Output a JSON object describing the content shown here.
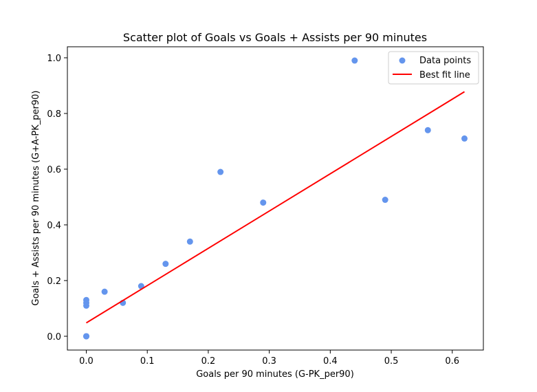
{
  "chart_data": {
    "type": "scatter",
    "title": "Scatter plot of Goals vs Goals + Assists per 90 minutes",
    "xlabel": "Goals per 90 minutes (G-PK_per90)",
    "ylabel": "Goals + Assists per 90 minutes (G+A-PK_per90)",
    "xlim": [
      -0.031,
      0.651
    ],
    "ylim": [
      -0.0495,
      1.0395
    ],
    "xticks": [
      0.0,
      0.1,
      0.2,
      0.3,
      0.4,
      0.5,
      0.6
    ],
    "xtick_labels": [
      "0.0",
      "0.1",
      "0.2",
      "0.3",
      "0.4",
      "0.5",
      "0.6"
    ],
    "yticks": [
      0.0,
      0.2,
      0.4,
      0.6,
      0.8,
      1.0
    ],
    "ytick_labels": [
      "0.0",
      "0.2",
      "0.4",
      "0.6",
      "0.8",
      "1.0"
    ],
    "grid": false,
    "legend_position": "top-right",
    "series": [
      {
        "name": "Data points",
        "kind": "scatter",
        "color": "#6495ED",
        "points": [
          {
            "x": 0.0,
            "y": 0.0
          },
          {
            "x": 0.0,
            "y": 0.0
          },
          {
            "x": 0.0,
            "y": 0.0
          },
          {
            "x": 0.0,
            "y": 0.11
          },
          {
            "x": 0.0,
            "y": 0.12
          },
          {
            "x": 0.0,
            "y": 0.13
          },
          {
            "x": 0.03,
            "y": 0.16
          },
          {
            "x": 0.06,
            "y": 0.12
          },
          {
            "x": 0.09,
            "y": 0.18
          },
          {
            "x": 0.13,
            "y": 0.26
          },
          {
            "x": 0.17,
            "y": 0.34
          },
          {
            "x": 0.22,
            "y": 0.59
          },
          {
            "x": 0.29,
            "y": 0.48
          },
          {
            "x": 0.44,
            "y": 0.99
          },
          {
            "x": 0.49,
            "y": 0.49
          },
          {
            "x": 0.56,
            "y": 0.74
          },
          {
            "x": 0.62,
            "y": 0.71
          }
        ]
      },
      {
        "name": "Best fit line",
        "kind": "line",
        "color": "#FF0000",
        "points": [
          {
            "x": 0.0,
            "y": 0.048
          },
          {
            "x": 0.62,
            "y": 0.878
          }
        ]
      }
    ]
  }
}
